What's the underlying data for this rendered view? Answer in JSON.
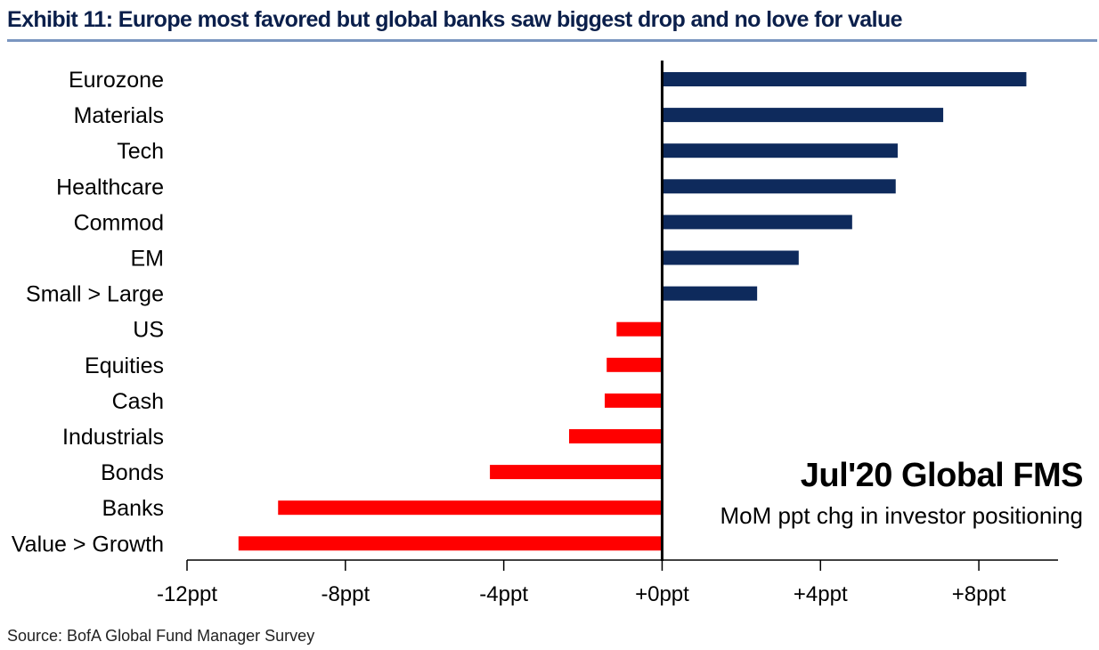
{
  "title": "Exhibit 11: Europe most favored but global banks saw biggest drop and no love for value",
  "source": "Source: BofA Global Fund Manager Survey",
  "colors": {
    "positive": "#0e2a5c",
    "negative": "#ff0000",
    "title": "#0b1f4b",
    "rule": "#7a96c0",
    "axis": "#000000"
  },
  "chart_data": {
    "type": "bar",
    "orientation": "horizontal",
    "categories": [
      "Eurozone",
      "Materials",
      "Tech",
      "Healthcare",
      "Commod",
      "EM",
      "Small > Large",
      "US",
      "Equities",
      "Cash",
      "Industrials",
      "Bonds",
      "Banks",
      "Value > Growth"
    ],
    "values": [
      9.2,
      7.1,
      5.95,
      5.9,
      4.8,
      3.45,
      2.4,
      -1.15,
      -1.4,
      -1.45,
      -2.35,
      -4.35,
      -9.7,
      -10.7
    ],
    "xlim": [
      -12,
      10
    ],
    "xticks": [
      -12,
      -8,
      -4,
      0,
      4,
      8
    ],
    "xtick_labels": [
      "-12ppt",
      "-8ppt",
      "-4ppt",
      "+0ppt",
      "+4ppt",
      "+8ppt"
    ],
    "annotation_title": "Jul'20 Global FMS",
    "annotation_subtitle": "MoM ppt chg in investor positioning",
    "grid": false
  }
}
